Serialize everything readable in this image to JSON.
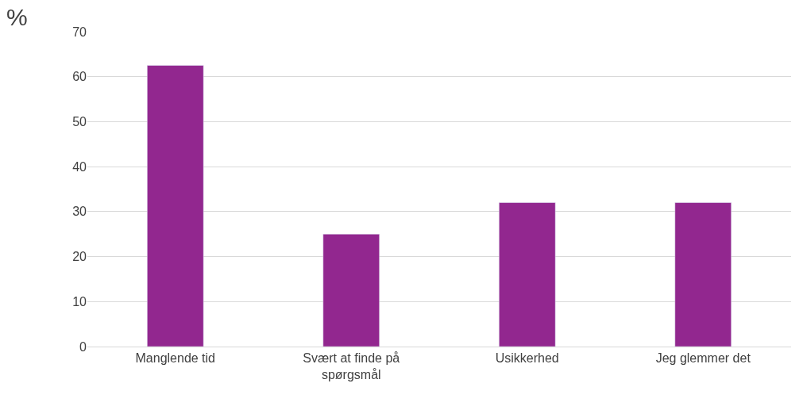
{
  "chart_data": {
    "type": "bar",
    "ylabel": "%",
    "categories": [
      "Manglende tid",
      "Svært at finde på spørgsmål",
      "Usikkerhed",
      "Jeg glemmer det"
    ],
    "values": [
      62.5,
      25,
      32,
      32
    ],
    "color": "#92278f",
    "ylim": [
      0,
      70
    ],
    "yticks": [
      0,
      10,
      20,
      30,
      40,
      50,
      60,
      70
    ],
    "grid": "y",
    "legend": false
  }
}
